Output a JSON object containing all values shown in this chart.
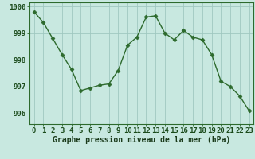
{
  "hours": [
    0,
    1,
    2,
    3,
    4,
    5,
    6,
    7,
    8,
    9,
    10,
    11,
    12,
    13,
    14,
    15,
    16,
    17,
    18,
    19,
    20,
    21,
    22,
    23
  ],
  "pressure": [
    999.8,
    999.4,
    998.8,
    998.2,
    997.65,
    996.85,
    996.95,
    997.05,
    997.1,
    997.6,
    998.55,
    998.85,
    999.6,
    999.65,
    999.0,
    998.75,
    999.1,
    998.85,
    998.75,
    998.2,
    997.2,
    997.0,
    996.65,
    996.1
  ],
  "line_color": "#2d6a2d",
  "marker": "D",
  "marker_size": 2.5,
  "bg_color": "#c8e8e0",
  "grid_color": "#a0c8c0",
  "title": "Graphe pression niveau de la mer (hPa)",
  "ylim_min": 995.6,
  "ylim_max": 1000.15,
  "yticks": [
    996,
    997,
    998,
    999,
    1000
  ],
  "tick_fontsize": 6.5,
  "title_fontsize": 7.0,
  "spine_color": "#2d6a2d"
}
